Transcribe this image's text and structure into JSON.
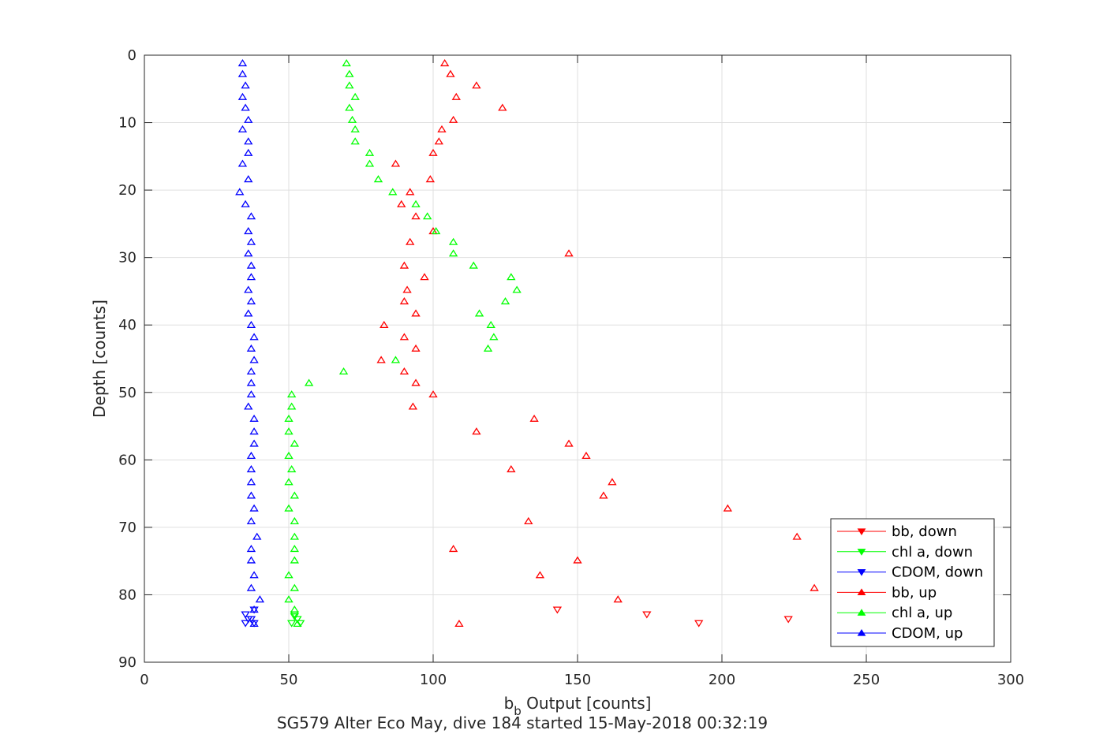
{
  "chart_data": {
    "type": "scatter",
    "title": "SG579 Alter Eco May, dive 184 started 15-May-2018 00:32:19",
    "xlabel_main": "b",
    "xlabel_sub": "b",
    "xlabel_rest": " Output [counts]",
    "ylabel": "Depth [counts]",
    "xlim": [
      0,
      300
    ],
    "ylim": [
      0,
      90
    ],
    "y_reversed": true,
    "grid": true,
    "legend_position": "bottom-right",
    "x_ticks": [
      0,
      50,
      100,
      150,
      200,
      250,
      300
    ],
    "y_ticks": [
      0,
      10,
      20,
      30,
      40,
      50,
      60,
      70,
      80,
      90
    ],
    "series": [
      {
        "name": "bb, down",
        "color": "#ff0000",
        "marker": "triangle-down",
        "points": [
          [
            143,
            82.2
          ],
          [
            174,
            82.9
          ],
          [
            192,
            84.2
          ],
          [
            223,
            83.6
          ]
        ]
      },
      {
        "name": "chl a, down",
        "color": "#00ff00",
        "marker": "triangle-down",
        "points": [
          [
            52,
            82.9
          ],
          [
            53,
            83.6
          ],
          [
            51,
            84.2
          ],
          [
            54,
            84.2
          ],
          [
            52,
            83.2
          ]
        ]
      },
      {
        "name": "CDOM, down",
        "color": "#0000ff",
        "marker": "triangle-down",
        "points": [
          [
            35,
            82.9
          ],
          [
            36,
            83.6
          ],
          [
            35,
            84.2
          ],
          [
            38,
            84.2
          ],
          [
            37,
            83.6
          ],
          [
            38,
            82.2
          ]
        ]
      },
      {
        "name": "bb, up",
        "color": "#ff0000",
        "marker": "triangle-up",
        "points": [
          [
            104,
            1.2
          ],
          [
            106,
            2.8
          ],
          [
            115,
            4.5
          ],
          [
            108,
            6.2
          ],
          [
            124,
            7.8
          ],
          [
            107,
            9.6
          ],
          [
            103,
            11.0
          ],
          [
            102,
            12.8
          ],
          [
            100,
            14.5
          ],
          [
            87,
            16.1
          ],
          [
            99,
            18.4
          ],
          [
            92,
            20.3
          ],
          [
            89,
            22.1
          ],
          [
            94,
            23.9
          ],
          [
            100,
            26.1
          ],
          [
            92,
            27.7
          ],
          [
            147,
            29.4
          ],
          [
            90,
            31.2
          ],
          [
            97,
            32.9
          ],
          [
            91,
            34.8
          ],
          [
            90,
            36.5
          ],
          [
            94,
            38.3
          ],
          [
            83,
            40.0
          ],
          [
            90,
            41.8
          ],
          [
            94,
            43.5
          ],
          [
            82,
            45.2
          ],
          [
            90,
            46.9
          ],
          [
            94,
            48.6
          ],
          [
            100,
            50.3
          ],
          [
            93,
            52.1
          ],
          [
            135,
            53.9
          ],
          [
            115,
            55.8
          ],
          [
            147,
            57.6
          ],
          [
            153,
            59.4
          ],
          [
            127,
            61.4
          ],
          [
            162,
            63.3
          ],
          [
            159,
            65.3
          ],
          [
            202,
            67.2
          ],
          [
            133,
            69.1
          ],
          [
            226,
            71.4
          ],
          [
            107,
            73.2
          ],
          [
            150,
            74.9
          ],
          [
            137,
            77.1
          ],
          [
            232,
            79.0
          ],
          [
            164,
            80.7
          ],
          [
            109,
            84.3
          ]
        ]
      },
      {
        "name": "chl a, up",
        "color": "#00ff00",
        "marker": "triangle-up",
        "points": [
          [
            70,
            1.2
          ],
          [
            71,
            2.8
          ],
          [
            71,
            4.5
          ],
          [
            73,
            6.2
          ],
          [
            71,
            7.8
          ],
          [
            72,
            9.6
          ],
          [
            73,
            11.0
          ],
          [
            73,
            12.8
          ],
          [
            78,
            14.5
          ],
          [
            78,
            16.1
          ],
          [
            81,
            18.4
          ],
          [
            86,
            20.3
          ],
          [
            94,
            22.1
          ],
          [
            98,
            23.9
          ],
          [
            101,
            26.1
          ],
          [
            107,
            27.7
          ],
          [
            107,
            29.4
          ],
          [
            114,
            31.2
          ],
          [
            127,
            32.9
          ],
          [
            129,
            34.8
          ],
          [
            125,
            36.5
          ],
          [
            116,
            38.3
          ],
          [
            120,
            40.0
          ],
          [
            121,
            41.8
          ],
          [
            119,
            43.5
          ],
          [
            87,
            45.2
          ],
          [
            69,
            46.9
          ],
          [
            57,
            48.6
          ],
          [
            51,
            50.3
          ],
          [
            51,
            52.1
          ],
          [
            50,
            53.9
          ],
          [
            50,
            55.8
          ],
          [
            52,
            57.6
          ],
          [
            50,
            59.4
          ],
          [
            51,
            61.4
          ],
          [
            50,
            63.3
          ],
          [
            52,
            65.3
          ],
          [
            50,
            67.2
          ],
          [
            52,
            69.1
          ],
          [
            52,
            71.4
          ],
          [
            52,
            73.2
          ],
          [
            52,
            74.9
          ],
          [
            50,
            77.1
          ],
          [
            52,
            79.0
          ],
          [
            50,
            80.7
          ],
          [
            52,
            82.2
          ],
          [
            53,
            84.3
          ]
        ]
      },
      {
        "name": "CDOM, up",
        "color": "#0000ff",
        "marker": "triangle-up",
        "points": [
          [
            34,
            1.2
          ],
          [
            34,
            2.8
          ],
          [
            35,
            4.5
          ],
          [
            34,
            6.2
          ],
          [
            35,
            7.8
          ],
          [
            36,
            9.6
          ],
          [
            34,
            11.0
          ],
          [
            36,
            12.8
          ],
          [
            36,
            14.5
          ],
          [
            34,
            16.1
          ],
          [
            36,
            18.4
          ],
          [
            33,
            20.3
          ],
          [
            35,
            22.1
          ],
          [
            37,
            23.9
          ],
          [
            36,
            26.1
          ],
          [
            37,
            27.7
          ],
          [
            36,
            29.4
          ],
          [
            37,
            31.2
          ],
          [
            37,
            32.9
          ],
          [
            36,
            34.8
          ],
          [
            37,
            36.5
          ],
          [
            36,
            38.3
          ],
          [
            37,
            40.0
          ],
          [
            38,
            41.8
          ],
          [
            37,
            43.5
          ],
          [
            38,
            45.2
          ],
          [
            37,
            46.9
          ],
          [
            37,
            48.6
          ],
          [
            37,
            50.3
          ],
          [
            36,
            52.1
          ],
          [
            38,
            53.9
          ],
          [
            38,
            55.8
          ],
          [
            38,
            57.6
          ],
          [
            37,
            59.4
          ],
          [
            37,
            61.4
          ],
          [
            37,
            63.3
          ],
          [
            37,
            65.3
          ],
          [
            38,
            67.2
          ],
          [
            37,
            69.1
          ],
          [
            39,
            71.4
          ],
          [
            37,
            73.2
          ],
          [
            37,
            74.9
          ],
          [
            38,
            77.1
          ],
          [
            37,
            79.0
          ],
          [
            40,
            80.7
          ],
          [
            38,
            82.2
          ],
          [
            38,
            84.3
          ]
        ]
      }
    ]
  }
}
